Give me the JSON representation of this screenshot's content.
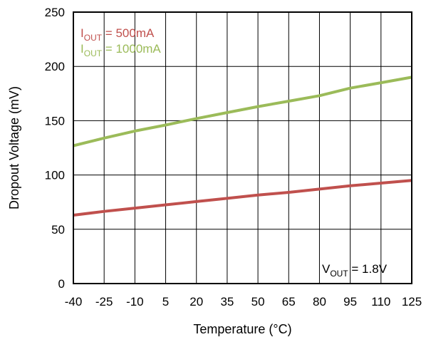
{
  "chart_data": {
    "type": "line",
    "xlabel": "Temperature (°C)",
    "ylabel": "Dropout Voltage (mV)",
    "x_ticks": [
      "-40",
      "-25",
      "-10",
      "5",
      "20",
      "35",
      "50",
      "65",
      "80",
      "95",
      "110",
      "125"
    ],
    "y_ticks": [
      "0",
      "50",
      "100",
      "150",
      "200",
      "250"
    ],
    "xlim": [
      -40,
      125
    ],
    "ylim": [
      0,
      250
    ],
    "grid": true,
    "legend_position": "top-left",
    "series": [
      {
        "label_main": "I",
        "label_sub": "OUT",
        "label_rest": " = 500mA",
        "color": "#c0504d",
        "x": [
          -40,
          -25,
          -10,
          5,
          20,
          35,
          50,
          65,
          80,
          95,
          110,
          125
        ],
        "y": [
          63,
          66.5,
          69.5,
          72.5,
          75.5,
          78.5,
          81.5,
          84,
          87,
          90,
          92.5,
          95
        ]
      },
      {
        "label_main": "I",
        "label_sub": "OUT",
        "label_rest": " = 1000mA",
        "color": "#9bbb59",
        "x": [
          -40,
          -25,
          -10,
          5,
          20,
          35,
          50,
          65,
          80,
          95,
          110,
          125
        ],
        "y": [
          127,
          134,
          140.5,
          146,
          152,
          157.5,
          163,
          168,
          173,
          180,
          185,
          190
        ]
      }
    ],
    "annotation": {
      "main": "V",
      "sub": "OUT",
      "rest": " = 1.8V"
    }
  }
}
